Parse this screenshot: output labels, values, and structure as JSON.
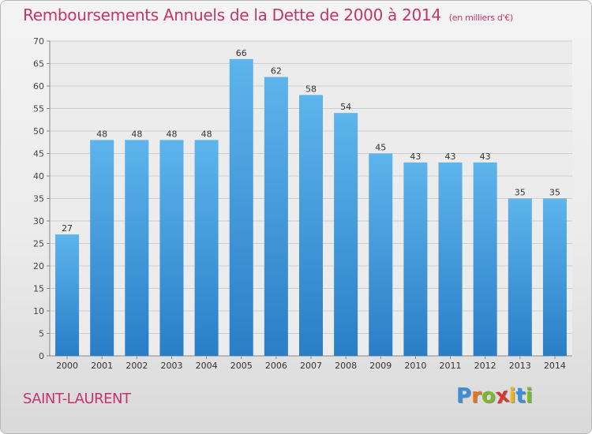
{
  "chart_data": {
    "type": "bar",
    "title": "Remboursements Annuels de la Dette de 2000 à 2014",
    "unit_label": "(en milliers d'€)",
    "categories": [
      "2000",
      "2001",
      "2002",
      "2003",
      "2004",
      "2005",
      "2006",
      "2007",
      "2008",
      "2009",
      "2010",
      "2011",
      "2012",
      "2013",
      "2014"
    ],
    "values": [
      27,
      48,
      48,
      48,
      48,
      66,
      62,
      58,
      54,
      45,
      43,
      43,
      43,
      35,
      35
    ],
    "ylim": [
      0,
      70
    ],
    "yticks": [
      0,
      5,
      10,
      15,
      20,
      25,
      30,
      35,
      40,
      45,
      50,
      55,
      60,
      65,
      70
    ],
    "grid": true,
    "colors": {
      "bar_light": "#5eb4ec",
      "bar_dark": "#2a7ec7",
      "title": "#c3356a",
      "grid": "#cfcfcf"
    }
  },
  "place": "SAINT-LAURENT",
  "logo": {
    "text": "Proxiti",
    "letters": [
      {
        "ch": "P",
        "color": "#3b8ed8"
      },
      {
        "ch": "r",
        "color": "#e8731c"
      },
      {
        "ch": "o",
        "color": "#7cb929"
      },
      {
        "ch": "x",
        "color": "#d63a2f"
      },
      {
        "ch": "i",
        "color": "#f0b51b"
      },
      {
        "ch": "t",
        "color": "#3b8ed8"
      },
      {
        "ch": "i",
        "color": "#7cb929"
      }
    ]
  }
}
